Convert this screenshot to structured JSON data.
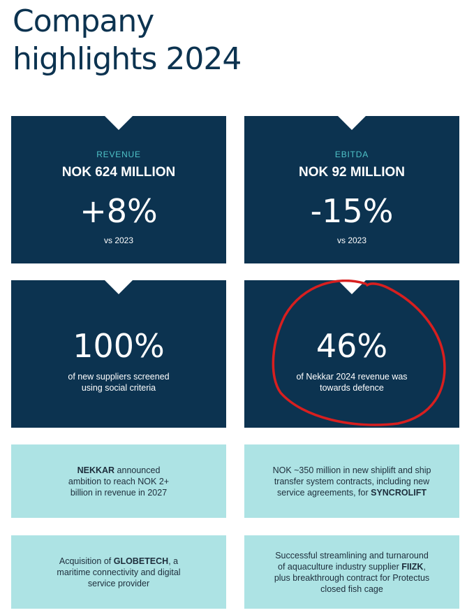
{
  "title_line1": "Company",
  "title_line2": "highlights 2024",
  "revenue": {
    "label": "REVENUE",
    "value": "NOK 624 MILLION",
    "change": "+8%",
    "vs": "vs 2023"
  },
  "ebitda": {
    "label": "EBITDA",
    "value": "NOK 92 MILLION",
    "change": "-15%",
    "vs": "vs 2023"
  },
  "suppliers": {
    "percent": "100%",
    "line1": "of new suppliers screened",
    "line2": "using social criteria"
  },
  "defence": {
    "percent": "46%",
    "line1": "of Nekkar 2024 revenue was",
    "line2": "towards defence",
    "annotation_color": "#d81f1f"
  },
  "tile_nekkar": {
    "name": "NEKKAR",
    "text1": " announced",
    "line2": "ambition to reach NOK 2+",
    "line3": "billion in revenue in 2027"
  },
  "tile_syncrolift": {
    "line1": "NOK ~350 million in new shiplift and ship",
    "line2": "transfer system contracts, including new",
    "text3": "service agreements, for ",
    "name": "SYNCROLIFT"
  },
  "tile_globetech": {
    "text1": "Acquisition of ",
    "name": "GLOBETECH",
    "text1b": ", a",
    "line2": "maritime connectivity and digital",
    "line3": "service provider"
  },
  "tile_fiizk": {
    "line1": "Successful streamlining and turnaround",
    "text2": "of aquaculture industry supplier ",
    "name": "FIIZK",
    "text2b": ",",
    "line3": "plus breakthrough contract for Protectus",
    "line4": "closed fish cage"
  },
  "colors": {
    "navy": "#0c3350",
    "teal_label": "#4fc3c8",
    "light_tile": "#ade3e4"
  }
}
